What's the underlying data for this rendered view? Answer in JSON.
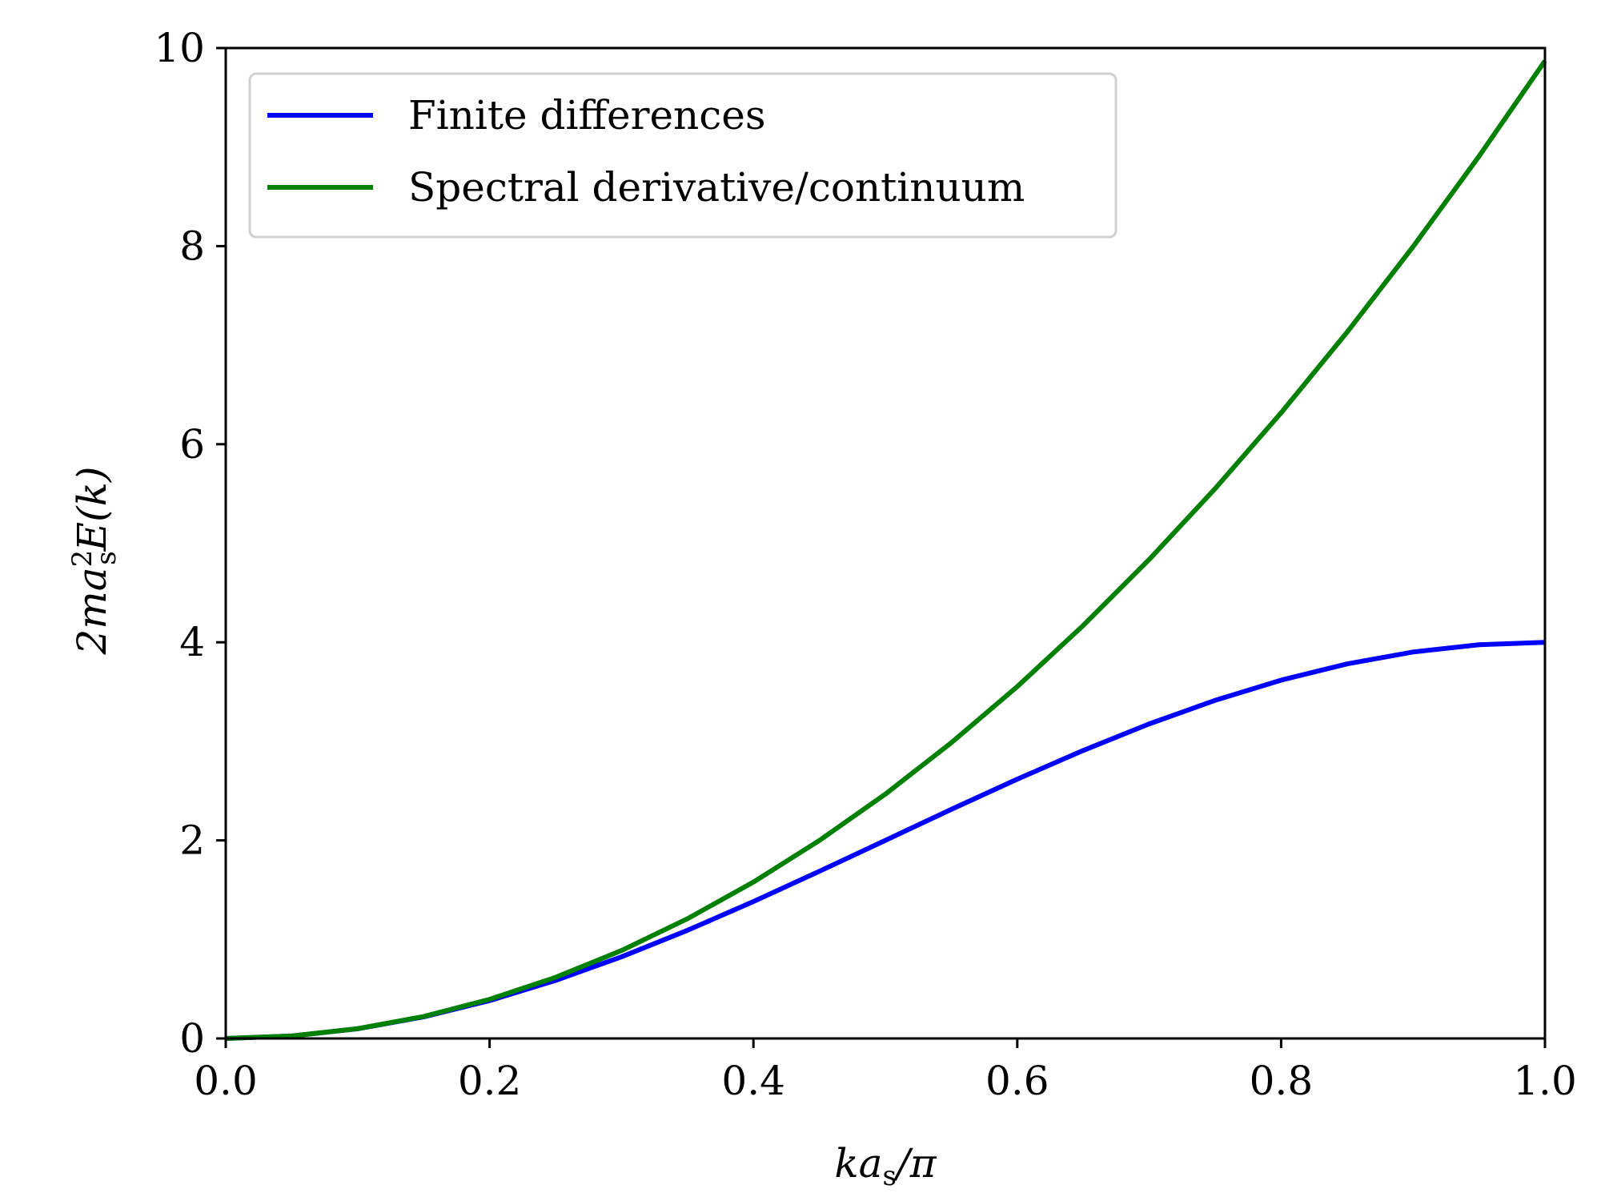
{
  "chart_data": {
    "type": "line",
    "xlabel": "ka_s/π",
    "ylabel": "2ma_s^2 E(k)",
    "xlim": [
      0.0,
      1.0
    ],
    "ylim": [
      0,
      10
    ],
    "x_ticks": [
      "0.0",
      "0.2",
      "0.4",
      "0.6",
      "0.8",
      "1.0"
    ],
    "x_tick_values": [
      0.0,
      0.2,
      0.4,
      0.6,
      0.8,
      1.0
    ],
    "y_ticks": [
      "0",
      "2",
      "4",
      "6",
      "8",
      "10"
    ],
    "y_tick_values": [
      0,
      2,
      4,
      6,
      8,
      10
    ],
    "grid": false,
    "legend_position": "top-left",
    "x": [
      0.0,
      0.05,
      0.1,
      0.15,
      0.2,
      0.25,
      0.3,
      0.35,
      0.4,
      0.45,
      0.5,
      0.55,
      0.6,
      0.65,
      0.7,
      0.75,
      0.8,
      0.85,
      0.9,
      0.95,
      1.0
    ],
    "series": [
      {
        "name": "Finite differences",
        "color": "#0000ff",
        "values": [
          0.0,
          0.025,
          0.098,
          0.218,
          0.382,
          0.586,
          0.824,
          1.092,
          1.382,
          1.688,
          2.0,
          2.313,
          2.618,
          2.908,
          3.176,
          3.414,
          3.618,
          3.782,
          3.902,
          3.975,
          4.0
        ]
      },
      {
        "name": "Spectral derivative/continuum",
        "color": "#008000",
        "values": [
          0.0,
          0.025,
          0.099,
          0.222,
          0.395,
          0.617,
          0.888,
          1.209,
          1.579,
          1.999,
          2.467,
          2.986,
          3.553,
          4.17,
          4.836,
          5.552,
          6.317,
          7.131,
          7.994,
          8.907,
          9.87
        ]
      }
    ],
    "labels": {
      "ylabel_base": "2ma",
      "ylabel_sub": "s",
      "ylabel_sup": "2",
      "ylabel_tail": "E(k)",
      "xlabel_base": "ka",
      "xlabel_sub": "s",
      "xlabel_tail": "/π"
    }
  }
}
